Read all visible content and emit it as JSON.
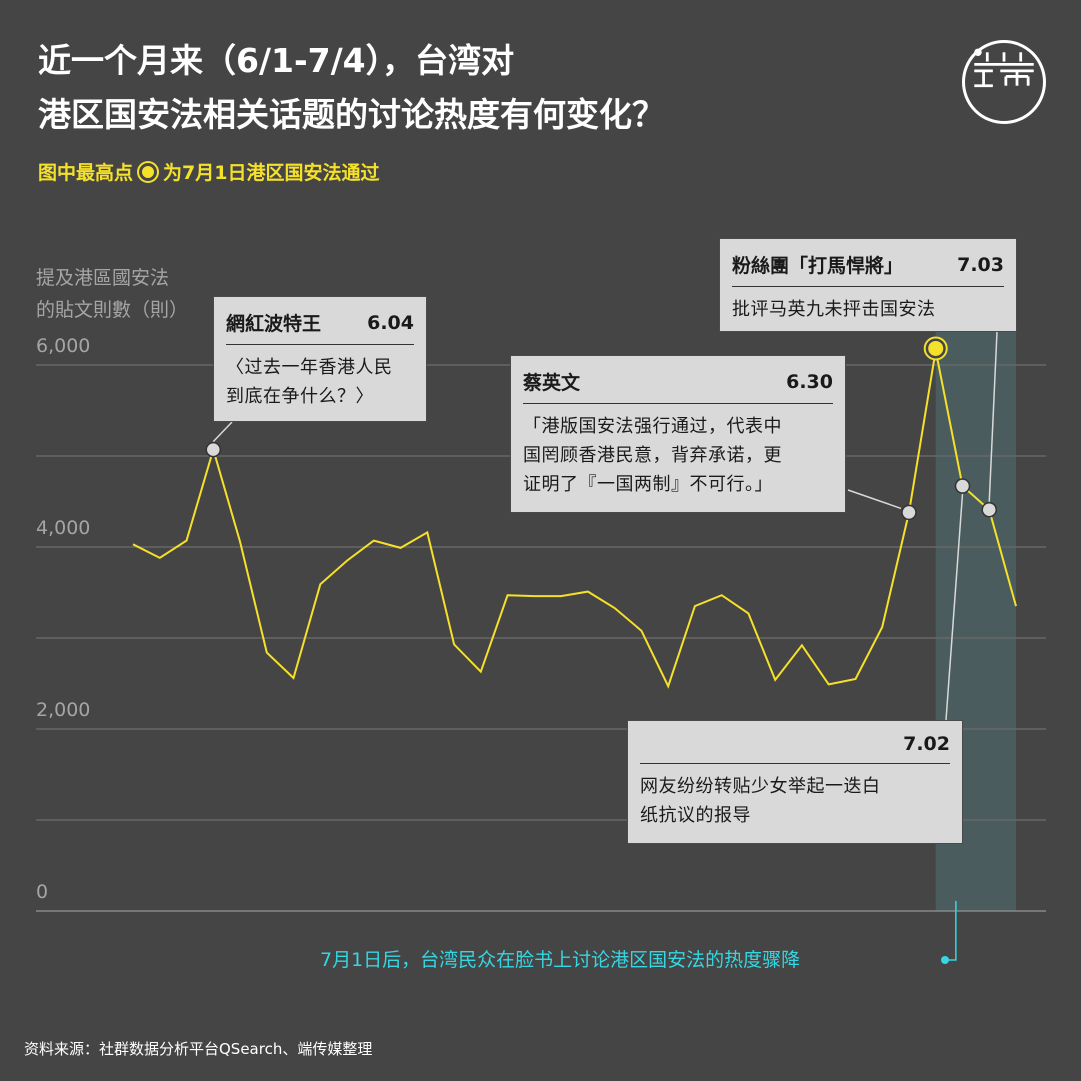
{
  "header": {
    "title_line1": "近一个月来（6/1-7/4），台湾对",
    "title_line2": "港区国安法相关话题的讨论热度有何变化？",
    "subtitle_before": "图中最高点",
    "subtitle_after": "为7月1日港区国安法通过"
  },
  "logo": {
    "name": "端 logo"
  },
  "colors": {
    "background": "#454545",
    "line": "#f5e02a",
    "highlight_band": "#4a5c5e",
    "note": "#34d7e3",
    "callout_bg": "#d9d9d9"
  },
  "chart_data": {
    "type": "line",
    "ylabel_line1": "提及港區國安法",
    "ylabel_line2": "的貼文則數（則）",
    "ylim": [
      0,
      6000
    ],
    "yticks": [
      "0",
      "2,000",
      "4,000",
      "6,000"
    ],
    "x": [
      "6/1",
      "6/2",
      "6/3",
      "6/4",
      "6/5",
      "6/6",
      "6/7",
      "6/8",
      "6/9",
      "6/10",
      "6/11",
      "6/12",
      "6/13",
      "6/14",
      "6/15",
      "6/16",
      "6/17",
      "6/18",
      "6/19",
      "6/20",
      "6/21",
      "6/22",
      "6/23",
      "6/24",
      "6/25",
      "6/26",
      "6/27",
      "6/28",
      "6/29",
      "6/30",
      "7/1",
      "7/2",
      "7/3",
      "7/4"
    ],
    "series": [
      {
        "values": [
          4030,
          3880,
          4070,
          5070,
          4060,
          2840,
          2560,
          3590,
          3850,
          4070,
          3990,
          4160,
          2930,
          2630,
          3470,
          3460,
          3460,
          3510,
          3330,
          3080,
          2470,
          3350,
          3470,
          3270,
          2540,
          2920,
          2490,
          2550,
          3120,
          4380,
          6160,
          4670,
          4410,
          3350
        ]
      }
    ],
    "grid": true,
    "highlight_range": [
      "7/1",
      "7/4"
    ],
    "peak": "7/1",
    "annotations": [
      {
        "x": "6/4",
        "head": "網紅波特王",
        "date": "6.04",
        "text": [
          "〈过去一年香港人民",
          "到底在争什么？〉"
        ]
      },
      {
        "x": "6/30",
        "head": "蔡英文",
        "date": "6.30",
        "text": [
          "「港版国安法强行通过，代表中",
          "国罔顾香港民意，背弃承诺，更",
          "证明了『一国两制』不可行。」"
        ]
      },
      {
        "x": "7/3",
        "head": "粉絲團「打馬悍將」",
        "date": "7.03",
        "text": [
          "批评马英九未抨击国安法"
        ]
      },
      {
        "x": "7/2",
        "head": "",
        "date": "7.02",
        "text": [
          "网友纷纷转贴少女举起一迭白",
          "纸抗议的报导"
        ]
      }
    ]
  },
  "note": "7月1日后，台湾民众在脸书上讨论港区国安法的热度骤降",
  "source": "资料来源：社群数据分析平台QSearch、端传媒整理"
}
